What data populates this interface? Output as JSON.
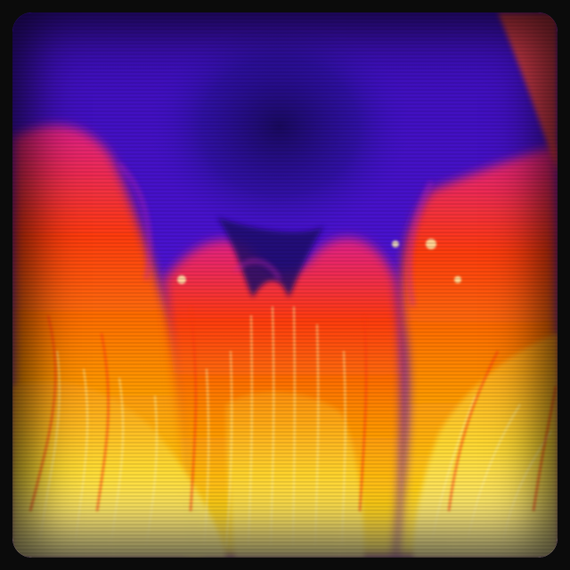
{
  "scene": {
    "subject": "thermal-flow-visualization",
    "palette": {
      "background_violet": "#4a10c8",
      "deep_indigo": "#1a0a6a",
      "magenta": "#b020a0",
      "red": "#e83010",
      "orange": "#ff7a00",
      "yellow": "#ffe23a",
      "white_hot": "#fff6a8",
      "bezel": "#0b0b0b"
    },
    "effects": [
      "crt-scanlines",
      "vignette",
      "rounded-bezel"
    ]
  }
}
